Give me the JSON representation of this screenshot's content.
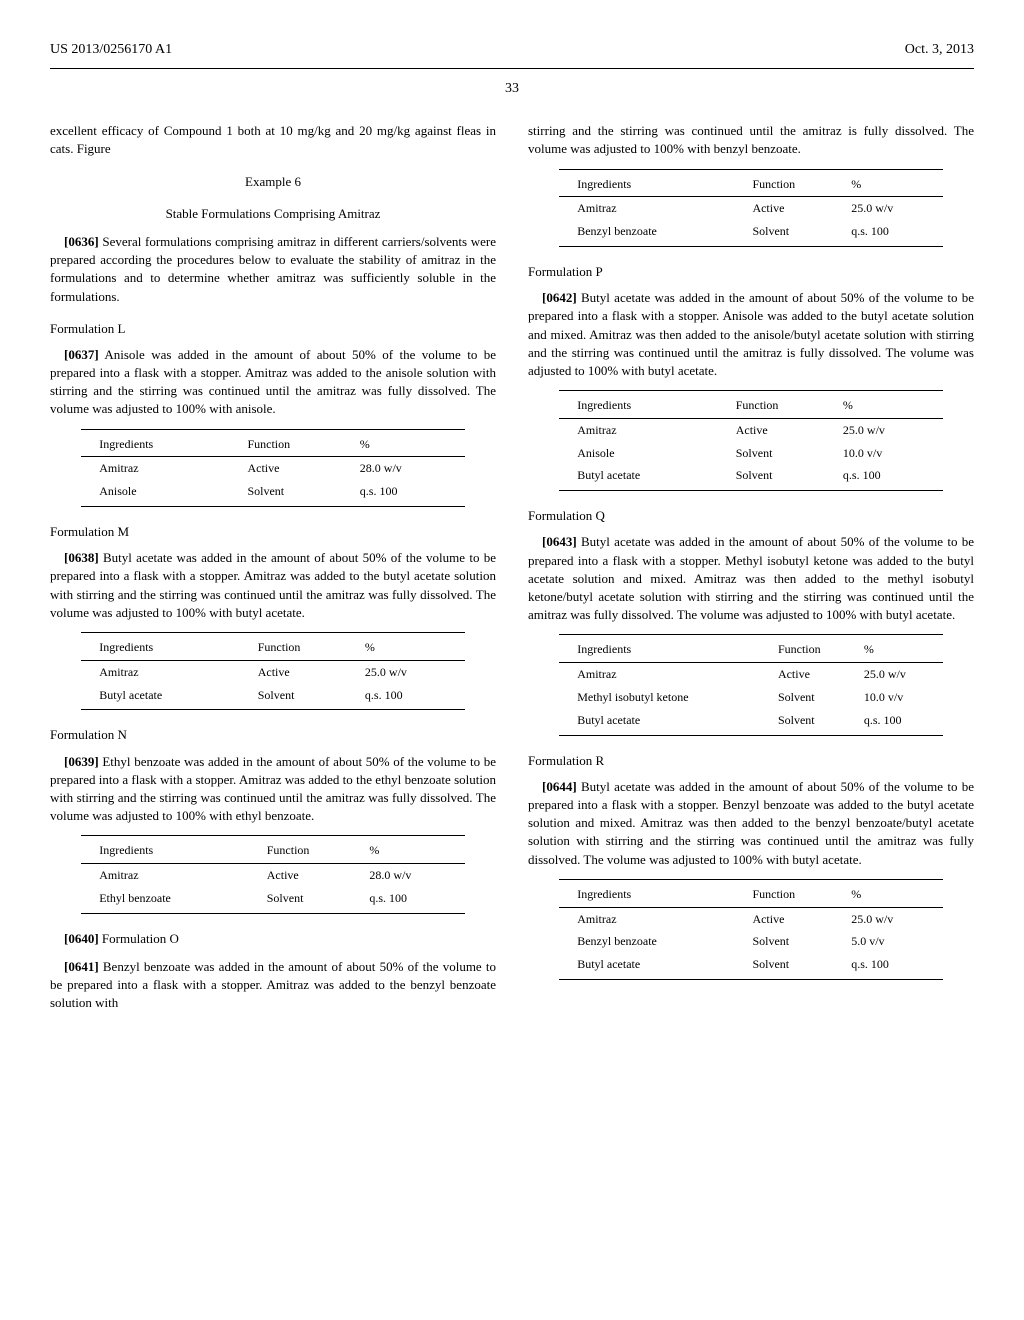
{
  "header": {
    "pub_number": "US 2013/0256170 A1",
    "date": "Oct. 3, 2013"
  },
  "page_number": "33",
  "left": {
    "intro_para": "excellent efficacy of Compound 1 both at 10 mg/kg and 20 mg/kg against fleas in cats. Figure",
    "example_label": "Example 6",
    "example_title": "Stable Formulations Comprising Amitraz",
    "p0636_num": "[0636]",
    "p0636": "Several formulations comprising amitraz in different carriers/solvents were prepared according the procedures below to evaluate the stability of amitraz in the formulations and to determine whether amitraz was sufficiently soluble in the formulations.",
    "formL_title": "Formulation L",
    "p0637_num": "[0637]",
    "p0637": "Anisole was added in the amount of about 50% of the volume to be prepared into a flask with a stopper. Amitraz was added to the anisole solution with stirring and the stirring was continued until the amitraz was fully dissolved. The volume was adjusted to 100% with anisole.",
    "tableL": {
      "headers": [
        "Ingredients",
        "Function",
        "%"
      ],
      "rows": [
        [
          "Amitraz",
          "Active",
          "28.0 w/v"
        ],
        [
          "Anisole",
          "Solvent",
          "q.s. 100"
        ]
      ]
    },
    "formM_title": "Formulation M",
    "p0638_num": "[0638]",
    "p0638": "Butyl acetate was added in the amount of about 50% of the volume to be prepared into a flask with a stopper. Amitraz was added to the butyl acetate solution with stirring and the stirring was continued until the amitraz was fully dissolved. The volume was adjusted to 100% with butyl acetate.",
    "tableM": {
      "headers": [
        "Ingredients",
        "Function",
        "%"
      ],
      "rows": [
        [
          "Amitraz",
          "Active",
          "25.0 w/v"
        ],
        [
          "Butyl acetate",
          "Solvent",
          "q.s. 100"
        ]
      ]
    },
    "formN_title": "Formulation N",
    "p0639_num": "[0639]",
    "p0639": "Ethyl benzoate was added in the amount of about 50% of the volume to be prepared into a flask with a stopper. Amitraz was added to the ethyl benzoate solution with stirring and the stirring was continued until the amitraz was fully dissolved. The volume was adjusted to 100% with ethyl benzoate.",
    "tableN": {
      "headers": [
        "Ingredients",
        "Function",
        "%"
      ],
      "rows": [
        [
          "Amitraz",
          "Active",
          "28.0 w/v"
        ],
        [
          "Ethyl benzoate",
          "Solvent",
          "q.s. 100"
        ]
      ]
    },
    "p0640_num": "[0640]",
    "p0640": "Formulation O",
    "p0641_num": "[0641]",
    "p0641": "Benzyl benzoate was added in the amount of about 50% of the volume to be prepared into a flask with a stopper. Amitraz was added to the benzyl benzoate solution with"
  },
  "right": {
    "cont_para": "stirring and the stirring was continued until the amitraz is fully dissolved. The volume was adjusted to 100% with benzyl benzoate.",
    "tableO": {
      "headers": [
        "Ingredients",
        "Function",
        "%"
      ],
      "rows": [
        [
          "Amitraz",
          "Active",
          "25.0 w/v"
        ],
        [
          "Benzyl benzoate",
          "Solvent",
          "q.s. 100"
        ]
      ]
    },
    "formP_title": "Formulation P",
    "p0642_num": "[0642]",
    "p0642": "Butyl acetate was added in the amount of about 50% of the volume to be prepared into a flask with a stopper. Anisole was added to the butyl acetate solution and mixed. Amitraz was then added to the anisole/butyl acetate solution with stirring and the stirring was continued until the amitraz is fully dissolved. The volume was adjusted to 100% with butyl acetate.",
    "tableP": {
      "headers": [
        "Ingredients",
        "Function",
        "%"
      ],
      "rows": [
        [
          "Amitraz",
          "Active",
          "25.0 w/v"
        ],
        [
          "Anisole",
          "Solvent",
          "10.0 v/v"
        ],
        [
          "Butyl acetate",
          "Solvent",
          "q.s. 100"
        ]
      ]
    },
    "formQ_title": "Formulation Q",
    "p0643_num": "[0643]",
    "p0643": "Butyl acetate was added in the amount of about 50% of the volume to be prepared into a flask with a stopper. Methyl isobutyl ketone was added to the butyl acetate solution and mixed. Amitraz was then added to the methyl isobutyl ketone/butyl acetate solution with stirring and the stirring was continued until the amitraz was fully dissolved. The volume was adjusted to 100% with butyl acetate.",
    "tableQ": {
      "headers": [
        "Ingredients",
        "Function",
        "%"
      ],
      "rows": [
        [
          "Amitraz",
          "Active",
          "25.0 w/v"
        ],
        [
          "Methyl isobutyl ketone",
          "Solvent",
          "10.0 v/v"
        ],
        [
          "Butyl acetate",
          "Solvent",
          "q.s. 100"
        ]
      ]
    },
    "formR_title": "Formulation R",
    "p0644_num": "[0644]",
    "p0644": "Butyl acetate was added in the amount of about 50% of the volume to be prepared into a flask with a stopper. Benzyl benzoate was added to the butyl acetate solution and mixed. Amitraz was then added to the benzyl benzoate/butyl acetate solution with stirring and the stirring was continued until the amitraz was fully dissolved. The volume was adjusted to 100% with butyl acetate.",
    "tableR": {
      "headers": [
        "Ingredients",
        "Function",
        "%"
      ],
      "rows": [
        [
          "Amitraz",
          "Active",
          "25.0 w/v"
        ],
        [
          "Benzyl benzoate",
          "Solvent",
          "5.0 v/v"
        ],
        [
          "Butyl acetate",
          "Solvent",
          "q.s. 100"
        ]
      ]
    }
  }
}
